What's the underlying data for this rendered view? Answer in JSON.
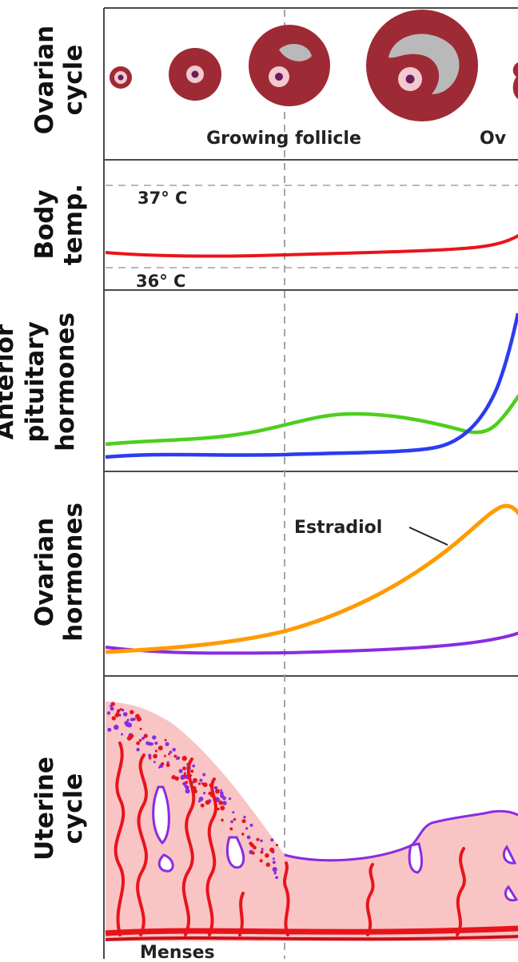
{
  "panels": {
    "ovarian_cycle": {
      "label_line1": "Ovarian",
      "label_line2": "cycle",
      "caption_growing": "Growing follicle",
      "caption_cut": "Ov"
    },
    "body_temp": {
      "label_line1": "Body",
      "label_line2": "temp.",
      "high_mark": "37° C",
      "low_mark": "36° C"
    },
    "anterior_pituitary": {
      "label_line1": "Anterior",
      "label_line2": "pituitary",
      "label_line3": "hormones"
    },
    "ovarian_hormones": {
      "label_line1": "Ovarian",
      "label_line2": "hormones",
      "estradiol_label": "Estradiol"
    },
    "uterine_cycle": {
      "label_line1": "Uterine",
      "label_line2": "cycle",
      "menses_label": "Menses"
    }
  },
  "colors": {
    "temperature_curve": "#e8141b",
    "lh_curve": "#2b3cf0",
    "fsh_curve": "#4ccf1e",
    "estradiol_curve": "#ff9b00",
    "progesterone_curve": "#8a2be2",
    "follicle": "#9e2a35",
    "endometrium": "#f9c4c4",
    "vessels": "#e8141b",
    "gland_outline": "#8a2be2"
  }
}
